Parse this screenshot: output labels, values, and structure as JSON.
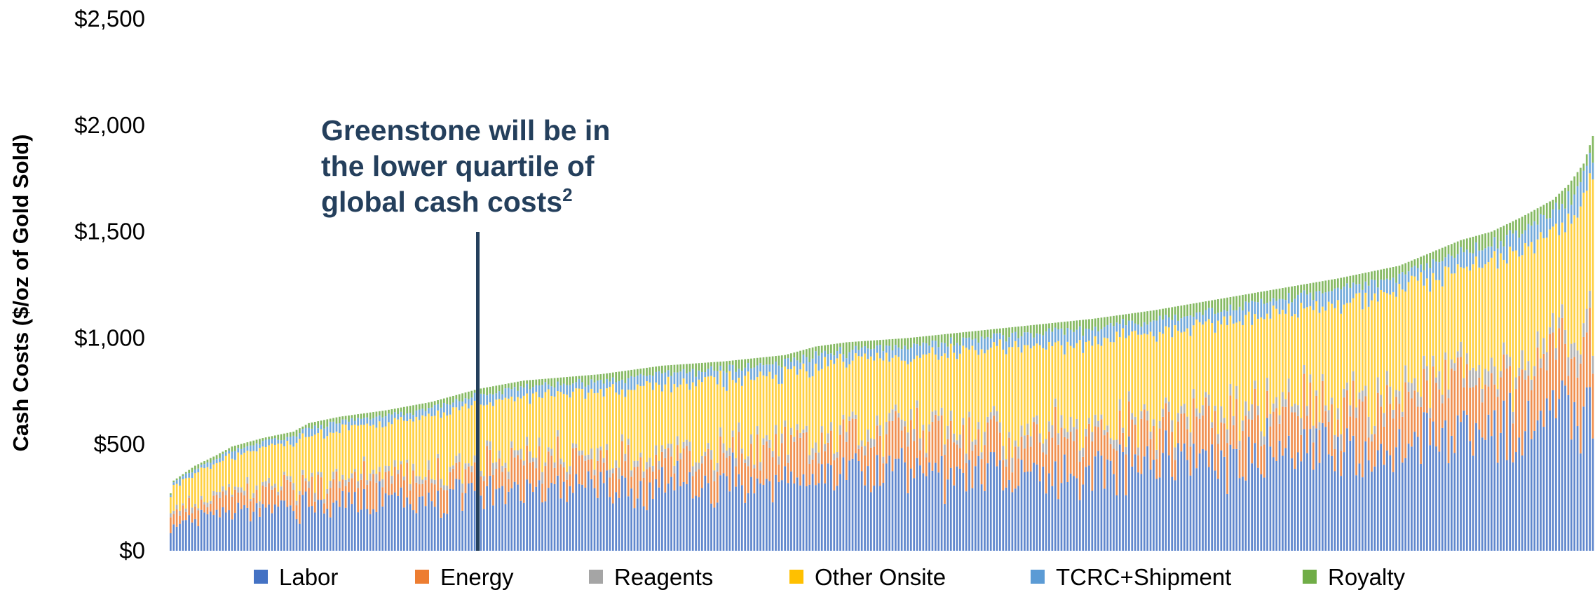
{
  "chart_data": {
    "type": "bar",
    "stacked": true,
    "ylabel": "Cash Costs ($/oz of Gold Sold)",
    "ylim": [
      0,
      2500
    ],
    "yticks": [
      "$0",
      "$500",
      "$1,000",
      "$1,500",
      "$2,000",
      "$2,500"
    ],
    "ytick_values": [
      0,
      500,
      1000,
      1500,
      2000,
      2500
    ],
    "annotation": {
      "lines": [
        "Greenstone will be in",
        "the lower quartile of",
        "global cash costs"
      ],
      "superscript": "2",
      "marker_total": 770,
      "marker_index": 100
    },
    "series": [
      {
        "name": "Labor",
        "color": "#4472c4"
      },
      {
        "name": "Energy",
        "color": "#ed7d31"
      },
      {
        "name": "Reagents",
        "color": "#a5a5a5"
      },
      {
        "name": "Other Onsite",
        "color": "#ffc000"
      },
      {
        "name": "TCRC+Shipment",
        "color": "#5b9bd5"
      },
      {
        "name": "Royalty",
        "color": "#70ad47"
      }
    ],
    "mine_count": 464,
    "total_cost_profile": [
      [
        0,
        270
      ],
      [
        1,
        330
      ],
      [
        3,
        350
      ],
      [
        8,
        400
      ],
      [
        15,
        450
      ],
      [
        20,
        490
      ],
      [
        30,
        530
      ],
      [
        40,
        560
      ],
      [
        45,
        600
      ],
      [
        55,
        630
      ],
      [
        70,
        660
      ],
      [
        85,
        700
      ],
      [
        100,
        760
      ],
      [
        115,
        800
      ],
      [
        140,
        830
      ],
      [
        160,
        870
      ],
      [
        180,
        890
      ],
      [
        200,
        920
      ],
      [
        210,
        960
      ],
      [
        220,
        980
      ],
      [
        240,
        1000
      ],
      [
        260,
        1030
      ],
      [
        280,
        1060
      ],
      [
        300,
        1090
      ],
      [
        320,
        1130
      ],
      [
        340,
        1180
      ],
      [
        360,
        1230
      ],
      [
        380,
        1280
      ],
      [
        400,
        1340
      ],
      [
        410,
        1400
      ],
      [
        420,
        1460
      ],
      [
        430,
        1500
      ],
      [
        440,
        1570
      ],
      [
        450,
        1650
      ],
      [
        455,
        1720
      ],
      [
        460,
        1820
      ],
      [
        463,
        1950
      ]
    ]
  }
}
